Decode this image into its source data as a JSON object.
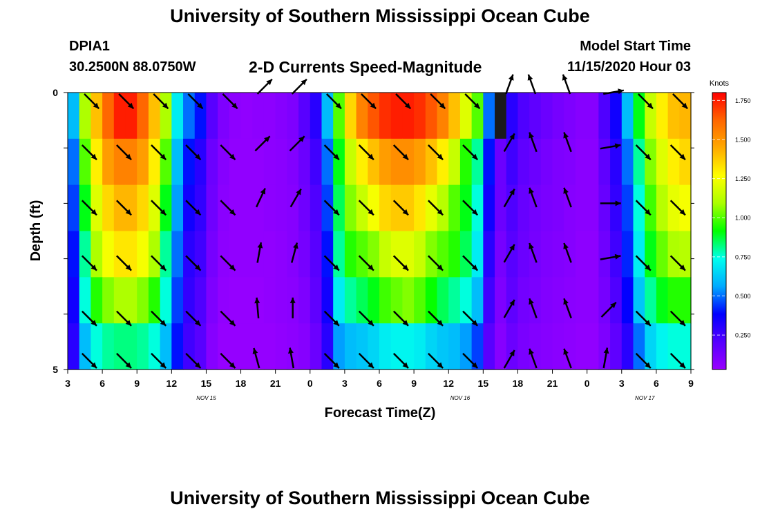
{
  "header": {
    "title": "University of Southern Mississippi Ocean Cube",
    "station_id": "DPIA1",
    "coords": "30.2500N 88.0750W",
    "chart_title": "2-D Currents Speed-Magnitude",
    "model_start_label": "Model Start Time",
    "model_start_value": "11/15/2020 Hour 03"
  },
  "footer": {
    "title": "University of Southern Mississippi Ocean Cube"
  },
  "chart_data": {
    "type": "heatmap",
    "title": "2-D Currents Speed-Magnitude",
    "xlabel": "Forecast Time(Z)",
    "ylabel": "Depth (ft)",
    "x_ticks": [
      "3",
      "6",
      "9",
      "12",
      "15",
      "18",
      "21",
      "0",
      "3",
      "6",
      "9",
      "12",
      "15",
      "18",
      "21",
      "0",
      "3",
      "6",
      "9"
    ],
    "date_labels": [
      {
        "label": "NOV 15",
        "hour_index": 12
      },
      {
        "label": "NOV 16",
        "hour_index": 34
      },
      {
        "label": "NOV 17",
        "hour_index": 50
      }
    ],
    "y_ticks": [
      "0",
      "5"
    ],
    "ylim": [
      0,
      5
    ],
    "hours": 54,
    "layers": 5,
    "colorbar_unit": "Knots",
    "colorbar_ticks": [
      "1.750",
      "1.500",
      "1.250",
      "1.000",
      "0.750",
      "0.500",
      "0.250"
    ],
    "colorbar_tick_values": [
      1.75,
      1.5,
      1.25,
      1.0,
      0.75,
      0.5,
      0.25
    ],
    "colorbar_range": [
      0.03,
      1.8
    ],
    "colors": {
      "missing": "#1a1a1a",
      "stops": [
        "#9900ff",
        "#5500ff",
        "#0000ff",
        "#00aaff",
        "#00ffee",
        "#00ff00",
        "#aaff00",
        "#ffff00",
        "#ffaa00",
        "#ff6600",
        "#ff0000"
      ]
    },
    "missing_hour_index": 37,
    "speed_rows": [
      [
        0.6,
        1.1,
        1.4,
        1.62,
        1.75,
        1.75,
        1.62,
        1.4,
        1.1,
        0.7,
        0.5,
        0.4,
        0.2,
        0.1,
        0.06,
        0.05,
        0.06,
        0.06,
        0.08,
        0.1,
        0.2,
        0.3,
        0.6,
        1.0,
        1.35,
        1.55,
        1.65,
        1.72,
        1.75,
        1.75,
        1.72,
        1.65,
        1.55,
        1.4,
        1.2,
        1.0,
        0.5,
        -1,
        0.3,
        0.22,
        0.18,
        0.15,
        0.12,
        0.1,
        0.08,
        0.08,
        0.22,
        0.35,
        0.6,
        0.9,
        1.15,
        1.3,
        1.4,
        1.42
      ],
      [
        0.5,
        1.0,
        1.3,
        1.48,
        1.55,
        1.55,
        1.48,
        1.3,
        1.0,
        0.6,
        0.4,
        0.3,
        0.15,
        0.08,
        0.05,
        0.05,
        0.05,
        0.06,
        0.07,
        0.09,
        0.15,
        0.25,
        0.5,
        0.9,
        1.15,
        1.3,
        1.4,
        1.48,
        1.52,
        1.52,
        1.48,
        1.4,
        1.3,
        1.15,
        0.95,
        0.8,
        0.4,
        0.15,
        0.25,
        0.18,
        0.15,
        0.12,
        0.1,
        0.09,
        0.07,
        0.07,
        0.18,
        0.3,
        0.5,
        0.8,
        1.05,
        1.2,
        1.3,
        1.35
      ],
      [
        0.45,
        0.9,
        1.2,
        1.35,
        1.42,
        1.42,
        1.35,
        1.2,
        0.9,
        0.55,
        0.35,
        0.28,
        0.14,
        0.07,
        0.05,
        0.05,
        0.05,
        0.06,
        0.07,
        0.08,
        0.14,
        0.22,
        0.45,
        0.85,
        1.05,
        1.15,
        1.25,
        1.35,
        1.38,
        1.38,
        1.32,
        1.22,
        1.12,
        1.0,
        0.9,
        0.75,
        0.35,
        0.15,
        0.22,
        0.16,
        0.13,
        0.11,
        0.1,
        0.08,
        0.07,
        0.07,
        0.16,
        0.28,
        0.45,
        0.75,
        0.98,
        1.12,
        1.22,
        1.25
      ],
      [
        0.4,
        0.8,
        1.1,
        1.25,
        1.32,
        1.32,
        1.25,
        1.1,
        0.8,
        0.5,
        0.3,
        0.25,
        0.12,
        0.06,
        0.05,
        0.05,
        0.05,
        0.05,
        0.06,
        0.08,
        0.12,
        0.2,
        0.4,
        0.8,
        0.95,
        1.0,
        1.05,
        1.15,
        1.2,
        1.2,
        1.15,
        1.05,
        1.0,
        0.95,
        0.85,
        0.7,
        0.3,
        0.12,
        0.2,
        0.15,
        0.12,
        0.1,
        0.09,
        0.08,
        0.06,
        0.06,
        0.14,
        0.25,
        0.42,
        0.7,
        0.9,
        1.02,
        1.1,
        1.12
      ],
      [
        0.35,
        0.75,
        0.95,
        1.05,
        1.1,
        1.1,
        1.05,
        0.95,
        0.75,
        0.45,
        0.28,
        0.22,
        0.1,
        0.05,
        0.04,
        0.04,
        0.04,
        0.05,
        0.06,
        0.07,
        0.1,
        0.18,
        0.35,
        0.7,
        0.8,
        0.85,
        0.9,
        0.98,
        1.02,
        1.05,
        1.0,
        0.92,
        0.85,
        0.8,
        0.75,
        0.6,
        0.25,
        0.1,
        0.18,
        0.13,
        0.11,
        0.09,
        0.08,
        0.07,
        0.06,
        0.06,
        0.12,
        0.22,
        0.38,
        0.62,
        0.8,
        0.9,
        0.95,
        0.95
      ],
      [
        0.3,
        0.6,
        0.75,
        0.8,
        0.82,
        0.82,
        0.8,
        0.75,
        0.6,
        0.4,
        0.25,
        0.2,
        0.08,
        0.04,
        0.04,
        0.04,
        0.04,
        0.04,
        0.05,
        0.06,
        0.08,
        0.15,
        0.3,
        0.55,
        0.6,
        0.62,
        0.65,
        0.7,
        0.72,
        0.72,
        0.7,
        0.65,
        0.62,
        0.6,
        0.55,
        0.45,
        0.2,
        0.08,
        0.15,
        0.11,
        0.09,
        0.08,
        0.07,
        0.06,
        0.05,
        0.05,
        0.1,
        0.18,
        0.3,
        0.5,
        0.65,
        0.72,
        0.75,
        0.75
      ]
    ],
    "arrow_hour_indices": [
      1,
      4,
      7,
      10,
      13,
      16,
      19,
      22,
      25,
      28,
      31,
      34,
      37,
      40,
      43,
      46,
      49
    ],
    "arrow_bearings_deg": [
      [
        135,
        135,
        135,
        135,
        135,
        45,
        45,
        135,
        135,
        135,
        135,
        135,
        20,
        -20,
        -20,
        80,
        135,
        135
      ],
      [
        135,
        135,
        135,
        135,
        135,
        45,
        45,
        135,
        135,
        135,
        135,
        135,
        30,
        -20,
        -20,
        80,
        135,
        135
      ],
      [
        135,
        135,
        135,
        135,
        135,
        25,
        30,
        135,
        135,
        135,
        135,
        135,
        30,
        -20,
        -20,
        90,
        135,
        135
      ],
      [
        135,
        135,
        135,
        135,
        135,
        10,
        15,
        135,
        135,
        135,
        135,
        135,
        30,
        -20,
        -20,
        80,
        135,
        135
      ],
      [
        135,
        135,
        135,
        135,
        135,
        -5,
        0,
        135,
        135,
        135,
        135,
        135,
        30,
        -20,
        -20,
        45,
        135,
        135
      ],
      [
        135,
        135,
        135,
        135,
        135,
        -15,
        -10,
        135,
        135,
        135,
        135,
        135,
        30,
        -20,
        -20,
        10,
        135,
        135
      ]
    ],
    "arrow_bearings_note": "rows: depth levels 0..5 ft; columns: arrow positions matching arrow_hour_indices plus trailing column",
    "arrow_hour_positions": [
      1,
      4,
      7,
      10,
      13,
      16,
      19,
      22,
      25,
      28,
      31,
      34,
      37.5,
      40,
      43,
      46,
      49,
      52
    ]
  }
}
